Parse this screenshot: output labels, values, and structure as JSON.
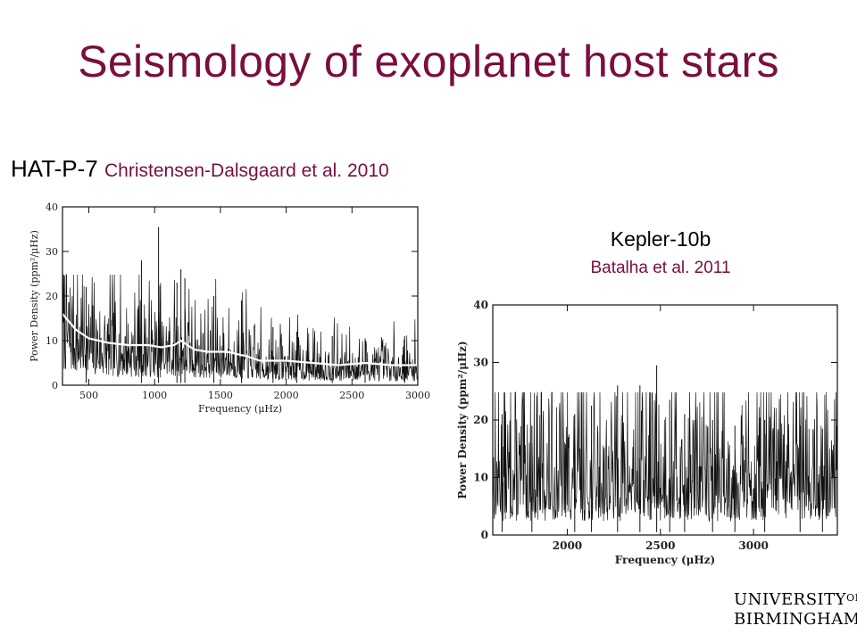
{
  "slide": {
    "title": "Seismology of exoplanet host stars",
    "hat": {
      "name": "HAT-P-7",
      "cite": "Christensen-Dalsgaard et al. 2010"
    },
    "kepler": {
      "name": "Kepler-10b",
      "cite": "Batalha et al. 2011"
    },
    "logo": {
      "line1": "UNIVERSITY",
      "of": "OF",
      "line2": "BIRMINGHAM"
    }
  },
  "chart_data": [
    {
      "type": "line",
      "xlabel": "Frequency (μHz)",
      "ylabel": "Power Density (ppm²/μHz)",
      "xlim": [
        300,
        3000
      ],
      "ylim": [
        0,
        40
      ],
      "xticks": [
        500,
        1000,
        1500,
        2000,
        2500,
        3000
      ],
      "yticks": [
        0,
        10,
        20,
        30,
        40
      ],
      "grid": false,
      "series": [
        {
          "name": "",
          "color": "#111111",
          "peaks": [
            [
              1030,
              35.5
            ],
            [
              900,
              28
            ],
            [
              1200,
              26
            ],
            [
              1170,
              23
            ],
            [
              1230,
              24
            ],
            [
              480,
              22
            ],
            [
              1450,
              20
            ],
            [
              1660,
              19
            ],
            [
              1900,
              13
            ],
            [
              2080,
              12
            ],
            [
              2350,
              11
            ],
            [
              2600,
              10.5
            ],
            [
              2900,
              11
            ]
          ]
        },
        {
          "name": "",
          "color": "#ffffff",
          "x": [
            300,
            400,
            500,
            650,
            800,
            950,
            1050,
            1150,
            1200,
            1300,
            1400,
            1550,
            1700,
            1800,
            1900,
            2000,
            2200,
            2400,
            2600,
            2800,
            3000
          ],
          "y": [
            16,
            12.5,
            10.5,
            9.5,
            9,
            9,
            8.5,
            9,
            10,
            8,
            7.5,
            7.5,
            6.5,
            5.5,
            5.5,
            5.5,
            5,
            4.5,
            5,
            4.5,
            4.5
          ]
        }
      ]
    },
    {
      "type": "line",
      "xlabel": "Frequency (μHz)",
      "ylabel": "Power Density (ppm²/μHz)",
      "xlim": [
        1600,
        3450
      ],
      "ylim": [
        0,
        40
      ],
      "xticks": [
        2000,
        2500,
        3000
      ],
      "yticks": [
        0,
        10,
        20,
        30,
        40
      ],
      "grid": false,
      "series": [
        {
          "name": "",
          "color": "#111111",
          "peaks": [
            [
              2480,
              29.5
            ],
            [
              2270,
              26
            ],
            [
              2390,
              26
            ],
            [
              2550,
              23.5
            ],
            [
              2130,
              22.5
            ],
            [
              2780,
              20
            ],
            [
              2040,
              21
            ],
            [
              1810,
              19
            ],
            [
              3060,
              20
            ],
            [
              3250,
              19
            ],
            [
              1650,
              21
            ],
            [
              2630,
              21
            ],
            [
              2900,
              19
            ],
            [
              3370,
              18.5
            ]
          ]
        }
      ]
    }
  ]
}
